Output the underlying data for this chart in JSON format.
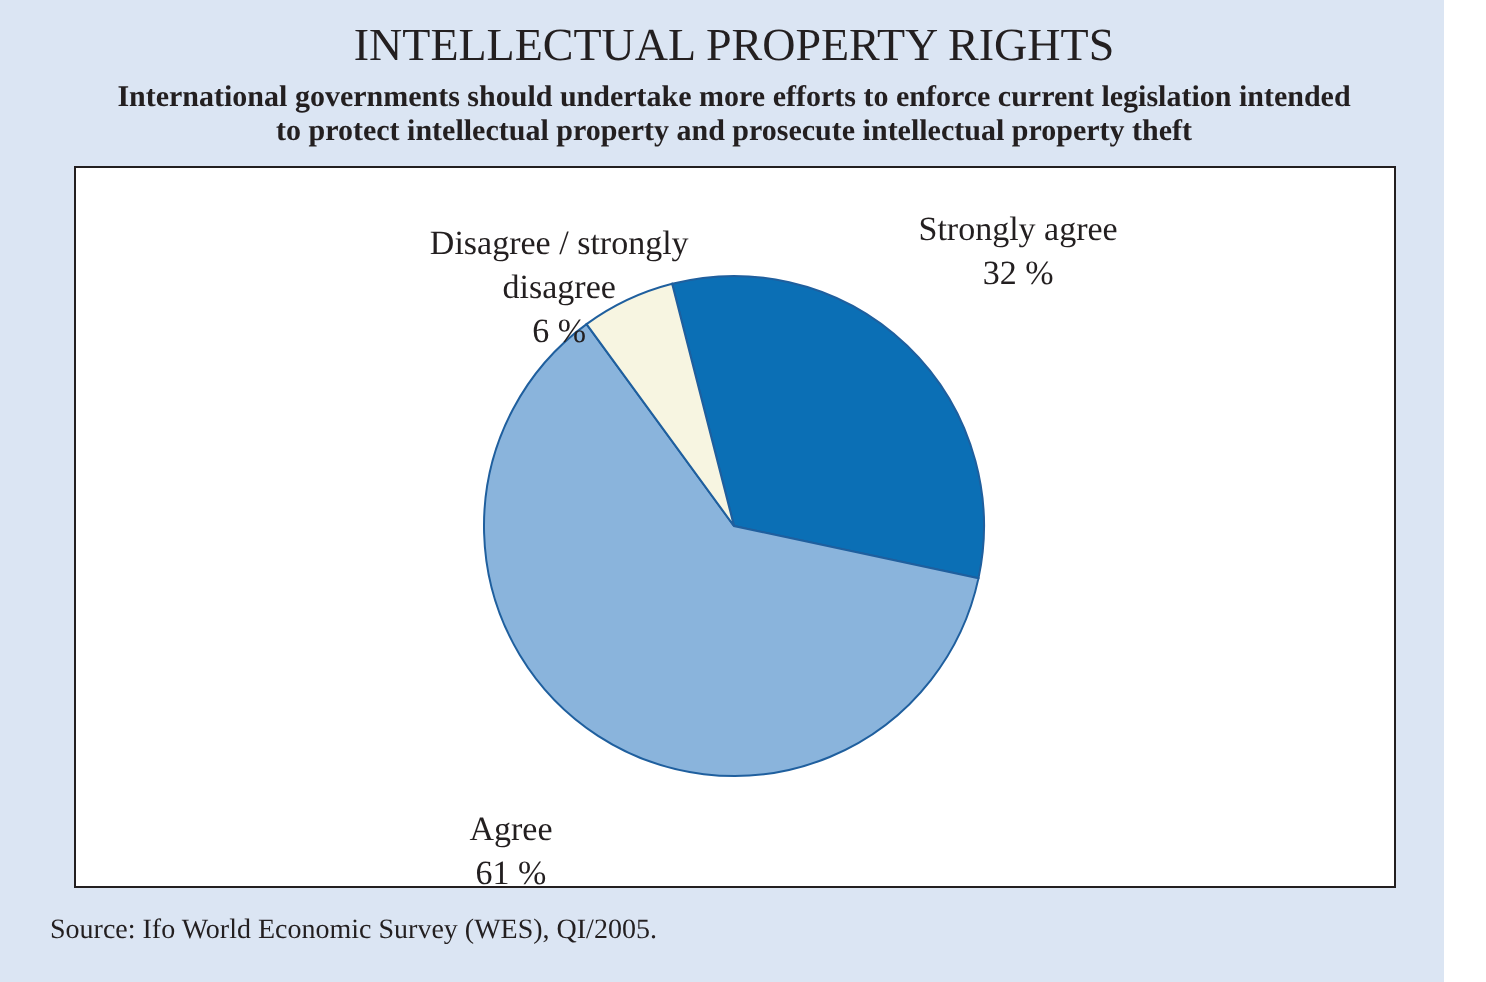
{
  "chart_data": {
    "type": "pie",
    "title": "INTELLECTUAL PROPERTY RIGHTS",
    "subtitle": "International governments should undertake more efforts to enforce current legislation intended to protect intellectual property and prosecute intellectual property theft",
    "categories": [
      "Strongly agree",
      "Agree",
      "Disagree / strongly disagree"
    ],
    "values": [
      32,
      61,
      6
    ],
    "value_labels": [
      "32 %",
      "61 %",
      "6 %"
    ],
    "colors": [
      "#0b6fb5",
      "#8ab4dc",
      "#f7f5e1"
    ],
    "legend": false,
    "annotations": [
      "Source: Ifo World Economic Survey (WES), QI/2005."
    ]
  }
}
